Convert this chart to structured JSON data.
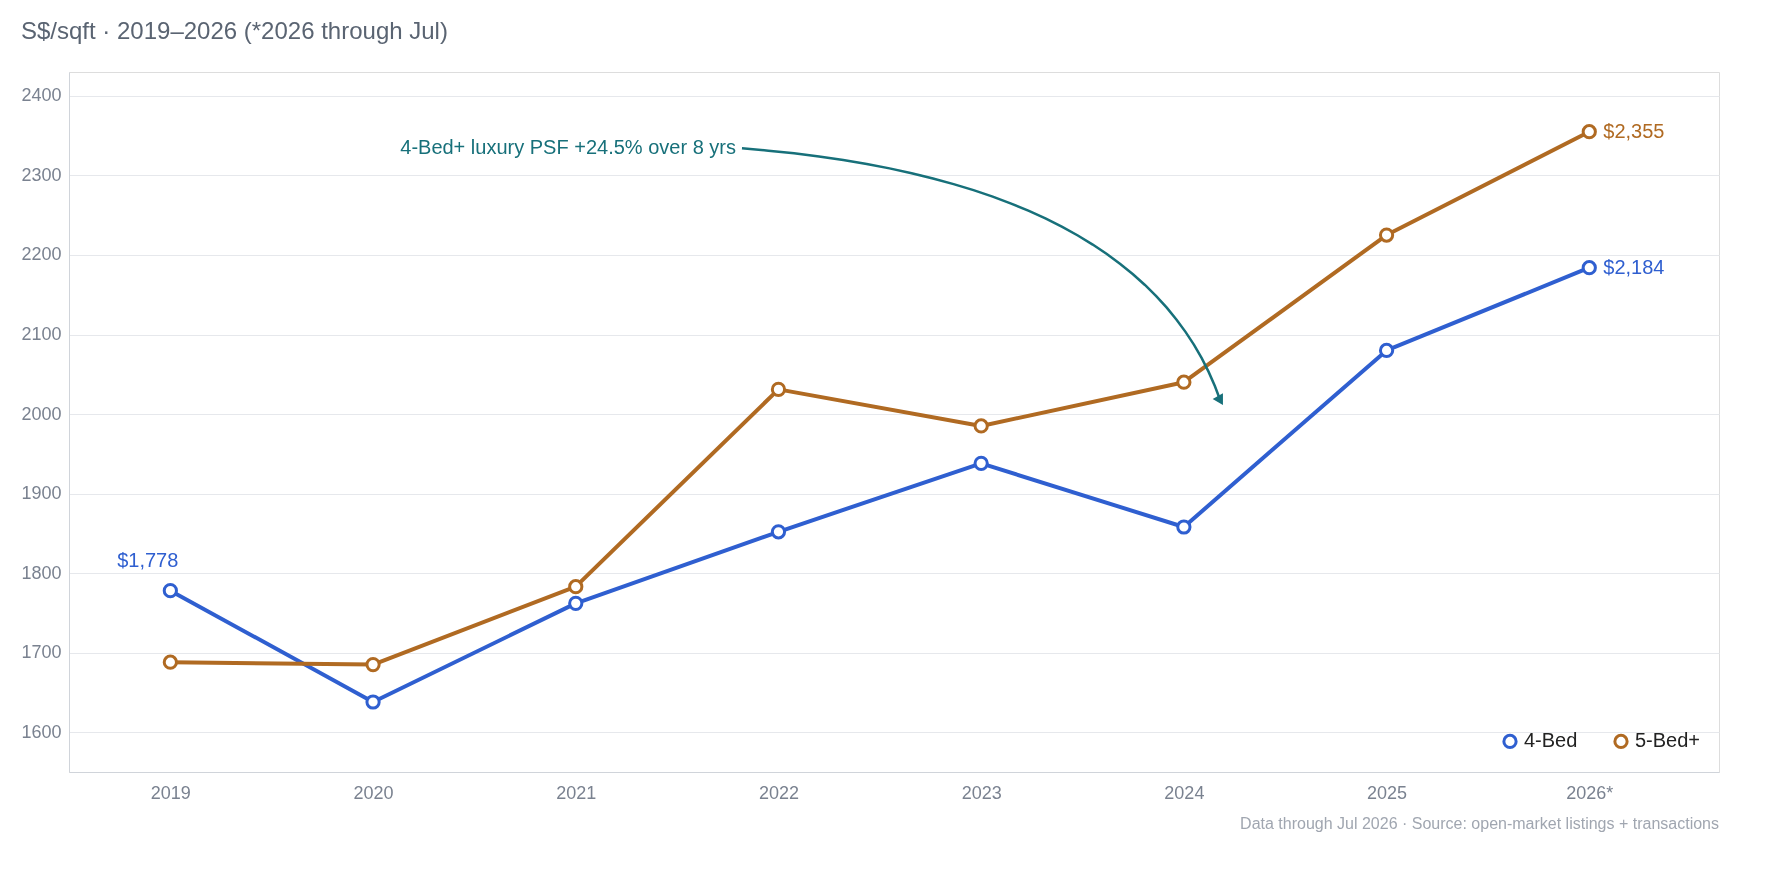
{
  "chart_data": {
    "type": "line",
    "title": "S$/sqft  ·  2019–2026 (*2026 through Jul)",
    "categories": [
      "2019",
      "2020",
      "2021",
      "2022",
      "2023",
      "2024",
      "2025",
      "2026*"
    ],
    "series": [
      {
        "name": "4-Bed",
        "color": "#2f5fd0",
        "values": [
          1778,
          1638,
          1762,
          1852,
          1938,
          1858,
          2080,
          2184
        ],
        "value_labels": [
          "$1,778",
          null,
          null,
          null,
          null,
          null,
          null,
          "$2,184"
        ]
      },
      {
        "name": "5-Bed+",
        "color": "#b06a22",
        "values": [
          1688,
          1685,
          1783,
          2031,
          1985,
          2040,
          2225,
          2355
        ],
        "value_labels": [
          null,
          null,
          null,
          null,
          null,
          null,
          null,
          "$2,355"
        ]
      }
    ],
    "ylim": [
      1550,
      2430
    ],
    "yticks": [
      1600,
      1700,
      1800,
      1900,
      2000,
      2100,
      2200,
      2300,
      2400
    ],
    "grid": "y",
    "legend": "bottom right",
    "marker": "circle",
    "line_style": "solid",
    "annotations": [
      "4-Bed+ luxury PSF +24.5% over 8 yrs",
      "Data through Jul 2026  ·  Source: open-market listings + transactions"
    ]
  }
}
